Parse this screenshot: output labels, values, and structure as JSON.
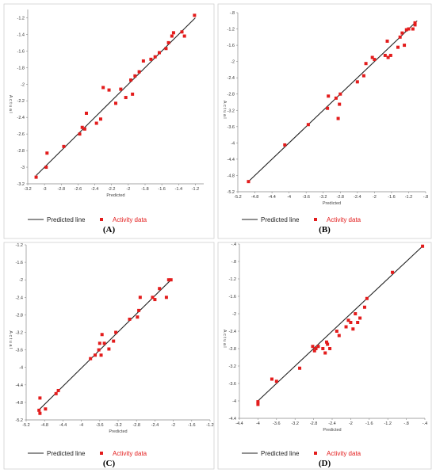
{
  "legend": {
    "line_label": "Predicted line",
    "points_label": "Activity data"
  },
  "colors": {
    "points": "#e31c1c",
    "line": "#222222",
    "axis": "#888888"
  },
  "chart_data": [
    {
      "type": "scatter",
      "caption": "(A)",
      "xlabel": "Predicted",
      "ylabel": "Actual",
      "xlim": [
        -3.2,
        -1.1
      ],
      "ylim": [
        -3.2,
        -1.1
      ],
      "xticks": [
        -3.2,
        -3,
        -2.8,
        -2.6,
        -2.4,
        -2.2,
        -2,
        -1.8,
        -1.6,
        -1.4,
        -1.2
      ],
      "yticks": [
        -3.2,
        -3,
        -2.8,
        -2.6,
        -2.4,
        -2.2,
        -2,
        -1.8,
        -1.6,
        -1.4,
        -1.2
      ],
      "line": [
        [
          -3.1,
          -3.1
        ],
        [
          -1.2,
          -1.2
        ]
      ],
      "points": [
        [
          -3.1,
          -3.12
        ],
        [
          -2.98,
          -3.0
        ],
        [
          -2.97,
          -2.83
        ],
        [
          -2.77,
          -2.75
        ],
        [
          -2.58,
          -2.6
        ],
        [
          -2.55,
          -2.52
        ],
        [
          -2.52,
          -2.54
        ],
        [
          -2.5,
          -2.35
        ],
        [
          -2.38,
          -2.47
        ],
        [
          -2.33,
          -2.42
        ],
        [
          -2.3,
          -2.04
        ],
        [
          -2.23,
          -2.07
        ],
        [
          -2.15,
          -2.23
        ],
        [
          -2.09,
          -2.06
        ],
        [
          -2.03,
          -2.16
        ],
        [
          -1.97,
          -1.95
        ],
        [
          -1.95,
          -2.12
        ],
        [
          -1.92,
          -1.9
        ],
        [
          -1.87,
          -1.85
        ],
        [
          -1.82,
          -1.72
        ],
        [
          -1.73,
          -1.7
        ],
        [
          -1.68,
          -1.67
        ],
        [
          -1.63,
          -1.62
        ],
        [
          -1.55,
          -1.57
        ],
        [
          -1.52,
          -1.5
        ],
        [
          -1.48,
          -1.42
        ],
        [
          -1.46,
          -1.38
        ],
        [
          -1.36,
          -1.37
        ],
        [
          -1.33,
          -1.42
        ],
        [
          -1.21,
          -1.17
        ]
      ]
    },
    {
      "type": "scatter",
      "caption": "(B)",
      "xlabel": "Predicted",
      "ylabel": "Actual",
      "xlim": [
        -5.2,
        -0.8
      ],
      "ylim": [
        -5.2,
        -0.8
      ],
      "xticks": [
        -5.2,
        -4.8,
        -4.4,
        -4,
        -3.6,
        -3.2,
        -2.8,
        -2.4,
        -2,
        -1.6,
        -1.2,
        -0.8
      ],
      "yticks": [
        -5.2,
        -4.8,
        -4.4,
        -4,
        -3.6,
        -3.2,
        -2.8,
        -2.4,
        -2,
        -1.6,
        -1.2,
        -0.8
      ],
      "line": [
        [
          -4.95,
          -4.95
        ],
        [
          -1.0,
          -1.0
        ]
      ],
      "points": [
        [
          -4.95,
          -4.95
        ],
        [
          -4.1,
          -4.05
        ],
        [
          -3.55,
          -3.55
        ],
        [
          -3.1,
          -3.15
        ],
        [
          -3.08,
          -2.85
        ],
        [
          -2.9,
          -2.9
        ],
        [
          -2.85,
          -3.4
        ],
        [
          -2.82,
          -3.05
        ],
        [
          -2.8,
          -2.8
        ],
        [
          -2.4,
          -2.5
        ],
        [
          -2.25,
          -2.35
        ],
        [
          -2.2,
          -2.05
        ],
        [
          -2.05,
          -1.9
        ],
        [
          -2.0,
          -1.95
        ],
        [
          -1.75,
          -1.85
        ],
        [
          -1.7,
          -1.5
        ],
        [
          -1.68,
          -1.9
        ],
        [
          -1.62,
          -1.85
        ],
        [
          -1.45,
          -1.65
        ],
        [
          -1.4,
          -1.4
        ],
        [
          -1.35,
          -1.3
        ],
        [
          -1.3,
          -1.6
        ],
        [
          -1.25,
          -1.22
        ],
        [
          -1.2,
          -1.2
        ],
        [
          -1.1,
          -1.2
        ],
        [
          -1.05,
          -1.1
        ],
        [
          -1.05,
          -1.05
        ]
      ]
    },
    {
      "type": "scatter",
      "caption": "(C)",
      "xlabel": "Predicted",
      "ylabel": "Actual",
      "xlim": [
        -5.2,
        -1.2
      ],
      "ylim": [
        -5.2,
        -1.2
      ],
      "xticks": [
        -5.2,
        -4.8,
        -4.4,
        -4,
        -3.6,
        -3.2,
        -2.8,
        -2.4,
        -2,
        -1.6,
        -1.2
      ],
      "yticks": [
        -5.2,
        -4.8,
        -4.4,
        -4,
        -3.6,
        -3.2,
        -2.8,
        -2.4,
        -2,
        -1.6,
        -1.2
      ],
      "line": [
        [
          -4.95,
          -5.0
        ],
        [
          -2.05,
          -2.0
        ]
      ],
      "points": [
        [
          -4.92,
          -4.98
        ],
        [
          -4.9,
          -5.05
        ],
        [
          -4.9,
          -4.7
        ],
        [
          -4.78,
          -4.95
        ],
        [
          -4.55,
          -4.6
        ],
        [
          -4.5,
          -4.53
        ],
        [
          -3.8,
          -3.8
        ],
        [
          -3.7,
          -3.72
        ],
        [
          -3.62,
          -3.6
        ],
        [
          -3.6,
          -3.45
        ],
        [
          -3.57,
          -3.72
        ],
        [
          -3.55,
          -3.25
        ],
        [
          -3.5,
          -3.45
        ],
        [
          -3.4,
          -3.58
        ],
        [
          -3.3,
          -3.4
        ],
        [
          -3.25,
          -3.2
        ],
        [
          -2.95,
          -2.9
        ],
        [
          -2.78,
          -2.85
        ],
        [
          -2.75,
          -2.7
        ],
        [
          -2.72,
          -2.4
        ],
        [
          -2.45,
          -2.4
        ],
        [
          -2.4,
          -2.45
        ],
        [
          -2.3,
          -2.2
        ],
        [
          -2.15,
          -2.4
        ],
        [
          -2.1,
          -2.0
        ],
        [
          -2.05,
          -2.0
        ]
      ]
    },
    {
      "type": "scatter",
      "caption": "(D)",
      "xlabel": "Predicted",
      "ylabel": "Actual",
      "xlim": [
        -4.4,
        -0.4
      ],
      "ylim": [
        -4.4,
        -0.4
      ],
      "xticks": [
        -4.4,
        -4,
        -3.6,
        -3.2,
        -2.8,
        -2.4,
        -2,
        -1.6,
        -1.2,
        -0.8,
        -0.4
      ],
      "yticks": [
        -4.4,
        -4,
        -3.6,
        -3.2,
        -2.8,
        -2.4,
        -2,
        -1.6,
        -1.2,
        -0.8,
        -0.4
      ],
      "line": [
        [
          -4.0,
          -4.0
        ],
        [
          -0.45,
          -0.45
        ]
      ],
      "points": [
        [
          -4.0,
          -4.02
        ],
        [
          -4.0,
          -4.08
        ],
        [
          -3.7,
          -3.5
        ],
        [
          -3.6,
          -3.55
        ],
        [
          -3.1,
          -3.25
        ],
        [
          -2.82,
          -2.75
        ],
        [
          -2.78,
          -2.85
        ],
        [
          -2.75,
          -2.8
        ],
        [
          -2.7,
          -2.75
        ],
        [
          -2.6,
          -2.8
        ],
        [
          -2.55,
          -2.9
        ],
        [
          -2.52,
          -2.65
        ],
        [
          -2.5,
          -2.7
        ],
        [
          -2.45,
          -2.8
        ],
        [
          -2.3,
          -2.4
        ],
        [
          -2.25,
          -2.5
        ],
        [
          -2.1,
          -2.3
        ],
        [
          -2.05,
          -2.15
        ],
        [
          -2.0,
          -2.2
        ],
        [
          -1.95,
          -2.35
        ],
        [
          -1.9,
          -2.0
        ],
        [
          -1.85,
          -2.2
        ],
        [
          -1.8,
          -2.1
        ],
        [
          -1.7,
          -1.85
        ],
        [
          -1.65,
          -1.65
        ],
        [
          -1.1,
          -1.05
        ],
        [
          -0.45,
          -0.45
        ]
      ]
    }
  ]
}
